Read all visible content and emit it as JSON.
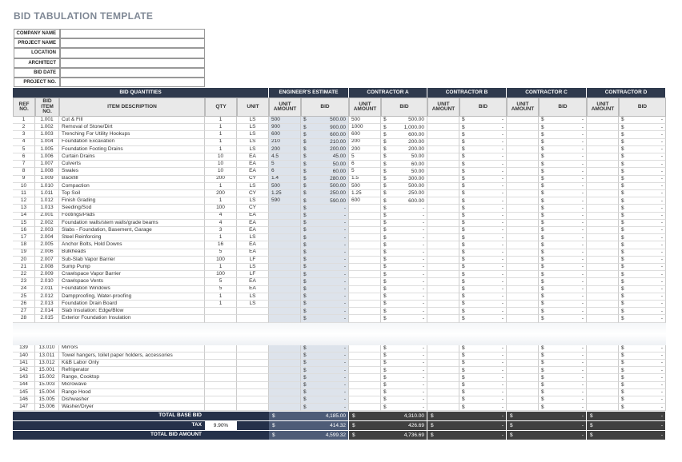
{
  "title": "BID TABULATION TEMPLATE",
  "project_info_labels": [
    "COMPANY NAME",
    "PROJECT NAME",
    "LOCATION",
    "ARCHITECT",
    "BID DATE",
    "PROJECT NO."
  ],
  "currency": "$",
  "table": {
    "group_headers": [
      "BID QUANTITIES",
      "ENGINEER'S ESTIMATE",
      "CONTRACTOR A",
      "CONTRACTOR B",
      "CONTRACTOR C",
      "CONTRACTOR D"
    ],
    "column_headers": [
      "REF NO.",
      "BID ITEM NO.",
      "ITEM DESCRIPTION",
      "QTY",
      "UNIT",
      "UNIT AMOUNT",
      "BID",
      "UNIT AMOUNT",
      "BID",
      "UNIT AMOUNT",
      "BID",
      "UNIT AMOUNT",
      "BID",
      "UNIT AMOUNT",
      "BID"
    ],
    "rows": [
      [
        1,
        "1.001",
        "Cut & Fill",
        1,
        "LS",
        500,
        "500.00",
        500,
        "500.00",
        null,
        "-",
        null,
        "-",
        null,
        "-"
      ],
      [
        2,
        "1.002",
        "Removal of Stone/Dirt",
        1,
        "LS",
        900,
        "900.00",
        1000,
        "1,000.00",
        null,
        "-",
        null,
        "-",
        null,
        "-"
      ],
      [
        3,
        "1.003",
        "Trenching For Utility Hookups",
        1,
        "LS",
        600,
        "600.00",
        600,
        "600.00",
        null,
        "-",
        null,
        "-",
        null,
        "-"
      ],
      [
        4,
        "1.004",
        "Foundation Excavation",
        1,
        "LS",
        210,
        "210.00",
        200,
        "200.00",
        null,
        "-",
        null,
        "-",
        null,
        "-"
      ],
      [
        5,
        "1.005",
        "Foundation Footing Drains",
        1,
        "LS",
        200,
        "200.00",
        200,
        "200.00",
        null,
        "-",
        null,
        "-",
        null,
        "-"
      ],
      [
        6,
        "1.006",
        "Curtain Drains",
        10,
        "EA",
        4.5,
        "45.00",
        5,
        "50.00",
        null,
        "-",
        null,
        "-",
        null,
        "-"
      ],
      [
        7,
        "1.007",
        "Culverts",
        10,
        "EA",
        5,
        "50.00",
        6,
        "60.00",
        null,
        "-",
        null,
        "-",
        null,
        "-"
      ],
      [
        8,
        "1.008",
        "Swales",
        10,
        "EA",
        6,
        "60.00",
        5,
        "50.00",
        null,
        "-",
        null,
        "-",
        null,
        "-"
      ],
      [
        9,
        "1.009",
        "Backfill",
        200,
        "CY",
        1.4,
        "280.00",
        1.5,
        "300.00",
        null,
        "-",
        null,
        "-",
        null,
        "-"
      ],
      [
        10,
        "1.010",
        "Compaction",
        1,
        "LS",
        500,
        "500.00",
        500,
        "500.00",
        null,
        "-",
        null,
        "-",
        null,
        "-"
      ],
      [
        11,
        "1.011",
        "Top Soil",
        200,
        "CY",
        1.25,
        "250.00",
        1.25,
        "250.00",
        null,
        "-",
        null,
        "-",
        null,
        "-"
      ],
      [
        12,
        "1.012",
        "Finish Grading",
        1,
        "LS",
        590,
        "590.00",
        600,
        "600.00",
        null,
        "-",
        null,
        "-",
        null,
        "-"
      ],
      [
        13,
        "1.013",
        "Seeding/Sod",
        100,
        "CY",
        null,
        "-",
        null,
        "-",
        null,
        "-",
        null,
        "-",
        null,
        "-"
      ],
      [
        14,
        "2.001",
        "Footings/Pads",
        4,
        "EA",
        null,
        "-",
        null,
        "-",
        null,
        "-",
        null,
        "-",
        null,
        "-"
      ],
      [
        15,
        "2.002",
        "Foundation walls/stem walls/grade beams",
        4,
        "EA",
        null,
        "-",
        null,
        "-",
        null,
        "-",
        null,
        "-",
        null,
        "-"
      ],
      [
        16,
        "2.003",
        "Slabs - Foundation, Basement, Garage",
        3,
        "EA",
        null,
        "-",
        null,
        "-",
        null,
        "-",
        null,
        "-",
        null,
        "-"
      ],
      [
        17,
        "2.004",
        "Steel Reinforcing",
        1,
        "LS",
        null,
        "-",
        null,
        "-",
        null,
        "-",
        null,
        "-",
        null,
        "-"
      ],
      [
        18,
        "2.005",
        "Anchor Bolts, Hold Downs",
        16,
        "EA",
        null,
        "-",
        null,
        "-",
        null,
        "-",
        null,
        "-",
        null,
        "-"
      ],
      [
        19,
        "2.006",
        "Bulkheads",
        5,
        "EA",
        null,
        "-",
        null,
        "-",
        null,
        "-",
        null,
        "-",
        null,
        "-"
      ],
      [
        20,
        "2.007",
        "Sub-Slab Vapor Barrier",
        100,
        "LF",
        null,
        "-",
        null,
        "-",
        null,
        "-",
        null,
        "-",
        null,
        "-"
      ],
      [
        21,
        "2.008",
        "Sump Pump",
        1,
        "LS",
        null,
        "-",
        null,
        "-",
        null,
        "-",
        null,
        "-",
        null,
        "-"
      ],
      [
        22,
        "2.009",
        "Crawlspace Vapor Barrier",
        100,
        "LF",
        null,
        "-",
        null,
        "-",
        null,
        "-",
        null,
        "-",
        null,
        "-"
      ],
      [
        23,
        "2.010",
        "Crawlspace Vents",
        5,
        "EA",
        null,
        "-",
        null,
        "-",
        null,
        "-",
        null,
        "-",
        null,
        "-"
      ],
      [
        24,
        "2.011",
        "Foundation Windows",
        5,
        "EA",
        null,
        "-",
        null,
        "-",
        null,
        "-",
        null,
        "-",
        null,
        "-"
      ],
      [
        25,
        "2.012",
        "Dampproofing, Water-proofing",
        1,
        "LS",
        null,
        "-",
        null,
        "-",
        null,
        "-",
        null,
        "-",
        null,
        "-"
      ],
      [
        26,
        "2.013",
        "Foundation Drain Board",
        1,
        "LS",
        null,
        "-",
        null,
        "-",
        null,
        "-",
        null,
        "-",
        null,
        "-"
      ],
      [
        27,
        "2.014",
        "Slab Insulation: Edge/Blow",
        null,
        null,
        null,
        "-",
        null,
        "-",
        null,
        "-",
        null,
        "-",
        null,
        "-"
      ],
      [
        28,
        "2.015",
        "Exterior Foundation Insulation",
        null,
        null,
        null,
        "-",
        null,
        "-",
        null,
        "-",
        null,
        "-",
        null,
        "-"
      ],
      [
        139,
        "13.010",
        "Mirrors",
        null,
        null,
        null,
        "-",
        null,
        "-",
        null,
        "-",
        null,
        "-",
        null,
        "-"
      ],
      [
        140,
        "13.011",
        "Towel hangers, toilet paper holders, accessories",
        null,
        null,
        null,
        "-",
        null,
        "-",
        null,
        "-",
        null,
        "-",
        null,
        "-"
      ],
      [
        141,
        "13.012",
        "K&B Labor Only",
        null,
        null,
        null,
        "-",
        null,
        "-",
        null,
        "-",
        null,
        "-",
        null,
        "-"
      ],
      [
        142,
        "15.001",
        "Refrigerator",
        null,
        null,
        null,
        "-",
        null,
        "-",
        null,
        "-",
        null,
        "-",
        null,
        "-"
      ],
      [
        143,
        "15.002",
        "Range, Cooktop",
        null,
        null,
        null,
        "-",
        null,
        "-",
        null,
        "-",
        null,
        "-",
        null,
        "-"
      ],
      [
        144,
        "15.003",
        "Microwave",
        null,
        null,
        null,
        "-",
        null,
        "-",
        null,
        "-",
        null,
        "-",
        null,
        "-"
      ],
      [
        145,
        "15.004",
        "Range Hood",
        null,
        null,
        null,
        "-",
        null,
        "-",
        null,
        "-",
        null,
        "-",
        null,
        "-"
      ],
      [
        146,
        "15.005",
        "Dishwasher",
        null,
        null,
        null,
        "-",
        null,
        "-",
        null,
        "-",
        null,
        "-",
        null,
        "-"
      ],
      [
        147,
        "15.006",
        "Washer/Dryer",
        null,
        null,
        null,
        "-",
        null,
        "-",
        null,
        "-",
        null,
        "-",
        null,
        "-"
      ]
    ],
    "totals": [
      {
        "label": "TOTAL BASE BID",
        "values": [
          "4,185.00",
          "4,310.00",
          "-",
          "-",
          "-"
        ]
      },
      {
        "label": "TAX",
        "rate": "9.90%",
        "values": [
          "414.32",
          "426.69",
          "-",
          "-",
          "-"
        ]
      },
      {
        "label": "TOTAL BID AMOUNT",
        "values": [
          "4,599.32",
          "4,736.69",
          "-",
          "-",
          "-"
        ]
      }
    ]
  }
}
